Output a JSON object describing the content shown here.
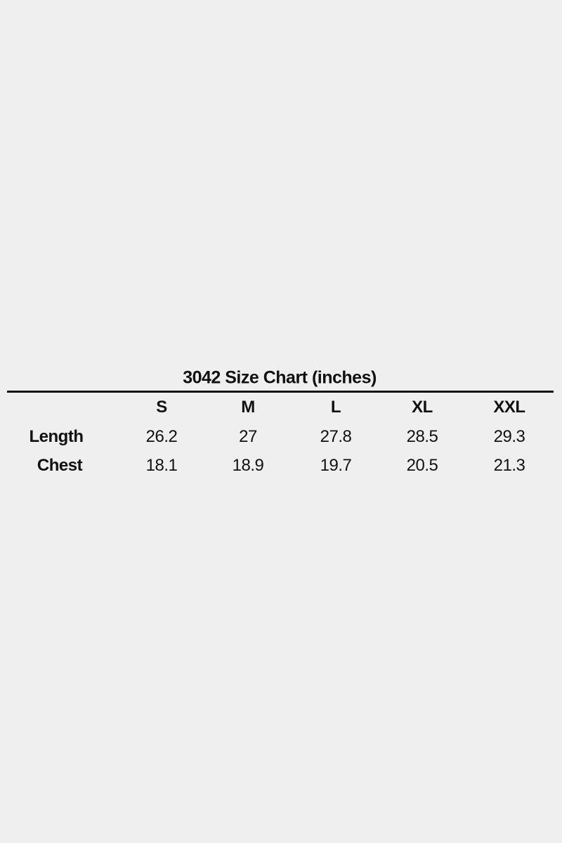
{
  "title": "3042 Size Chart (inches)",
  "sizes": [
    "S",
    "M",
    "L",
    "XL",
    "XXL"
  ],
  "rows": [
    {
      "label": "Length",
      "values": [
        "26.2",
        "27",
        "27.8",
        "28.5",
        "29.3"
      ]
    },
    {
      "label": "Chest",
      "values": [
        "18.1",
        "18.9",
        "19.7",
        "20.5",
        "21.3"
      ]
    }
  ]
}
